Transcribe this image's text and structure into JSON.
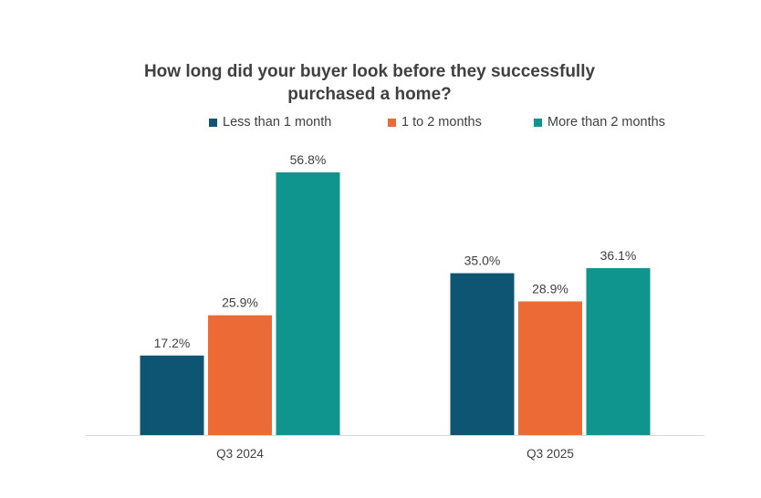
{
  "chart_data": {
    "type": "bar",
    "title_line1": "How long did your buyer look before they successfully",
    "title_line2": "purchased a home?",
    "xlabel": "",
    "ylabel": "",
    "categories": [
      "Q3 2024",
      "Q3 2025"
    ],
    "series": [
      {
        "name": "Less than 1 month",
        "color": "#0e5574",
        "values": [
          17.2,
          35.0
        ],
        "labels": [
          "17.2%",
          "35.0%"
        ]
      },
      {
        "name": "1 to 2 months",
        "color": "#ec6a35",
        "values": [
          25.9,
          28.9
        ],
        "labels": [
          "25.9%",
          "28.9%"
        ]
      },
      {
        "name": "More than 2 months",
        "color": "#10958e",
        "values": [
          56.8,
          36.1
        ],
        "labels": [
          "56.8%",
          "36.1%"
        ]
      }
    ],
    "ylim": [
      0,
      56.8
    ],
    "grid": false,
    "legend_position": "top"
  }
}
